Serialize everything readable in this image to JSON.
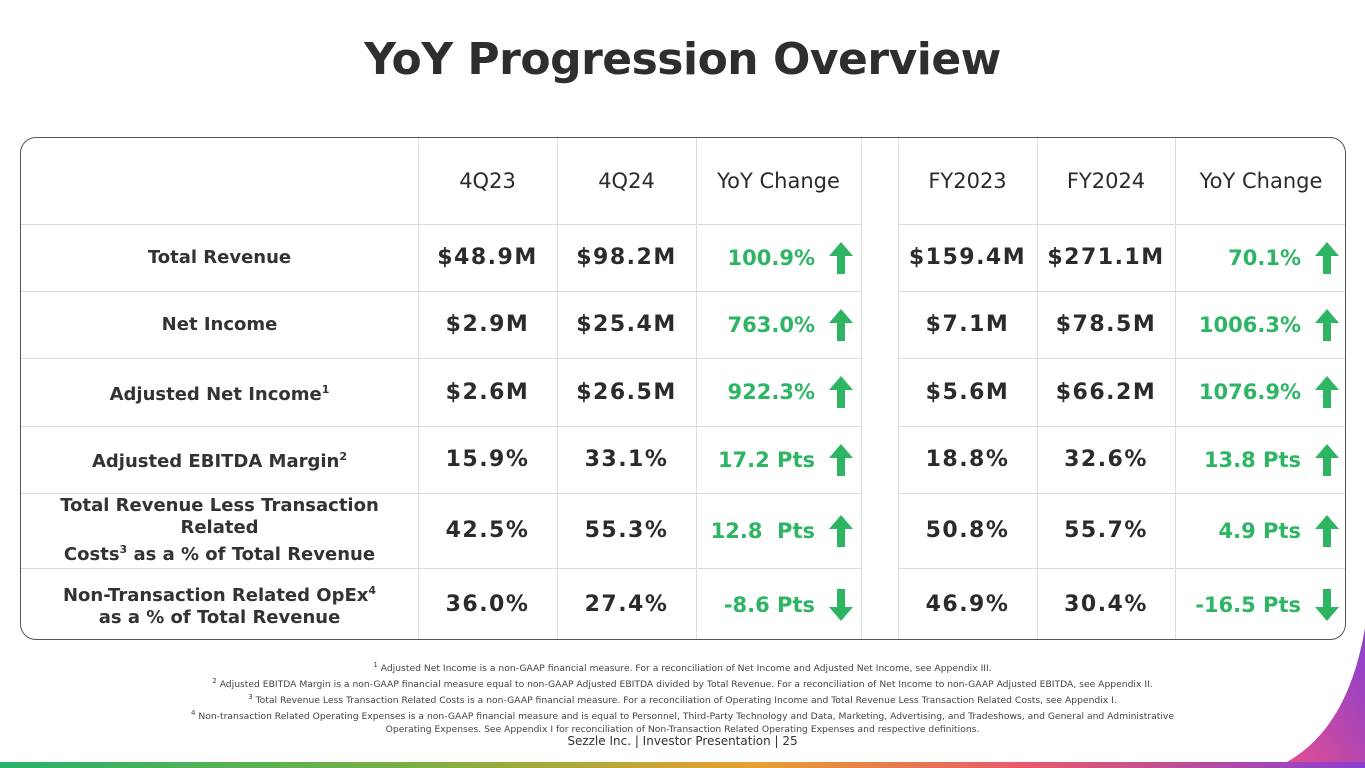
{
  "title": "YoY Progression Overview",
  "headers": [
    "4Q23",
    "4Q24",
    "YoY Change",
    "FY2023",
    "FY2024",
    "YoY Change"
  ],
  "rows": [
    {
      "label": "Total Revenue",
      "sup": "",
      "label2": "",
      "sup2": "",
      "q23": "$48.9M",
      "q24": "$98.2M",
      "qchg": "100.9%",
      "qdir": "up",
      "fy23": "$159.4M",
      "fy24": "$271.1M",
      "fychg": "70.1%",
      "fydir": "up"
    },
    {
      "label": "Net Income",
      "sup": "",
      "label2": "",
      "sup2": "",
      "q23": "$2.9M",
      "q24": "$25.4M",
      "qchg": "763.0%",
      "qdir": "up",
      "fy23": "$7.1M",
      "fy24": "$78.5M",
      "fychg": "1006.3%",
      "fydir": "up"
    },
    {
      "label": "Adjusted Net Income",
      "sup": "1",
      "label2": "",
      "sup2": "",
      "q23": "$2.6M",
      "q24": "$26.5M",
      "qchg": "922.3%",
      "qdir": "up",
      "fy23": "$5.6M",
      "fy24": "$66.2M",
      "fychg": "1076.9%",
      "fydir": "up"
    },
    {
      "label": "Adjusted EBITDA Margin",
      "sup": "2",
      "label2": "",
      "sup2": "",
      "q23": "15.9%",
      "q24": "33.1%",
      "qchg": "17.2 Pts",
      "qdir": "up",
      "fy23": "18.8%",
      "fy24": "32.6%",
      "fychg": "13.8 Pts",
      "fydir": "up"
    },
    {
      "label": "Total Revenue Less Transaction Related",
      "sup": "",
      "label2": "Costs",
      "sup2": "3",
      "label2b": " as a % of Total Revenue",
      "q23": "42.5%",
      "q24": "55.3%",
      "qchg": "12.8  Pts",
      "qdir": "up",
      "fy23": "50.8%",
      "fy24": "55.7%",
      "fychg": "4.9 Pts",
      "fydir": "up"
    },
    {
      "label": "Non-Transaction Related OpEx",
      "sup": "4",
      "label2": "as a % of Total Revenue",
      "sup2": "",
      "q23": "36.0%",
      "q24": "27.4%",
      "qchg": "-8.6 Pts",
      "qdir": "down",
      "fy23": "46.9%",
      "fy24": "30.4%",
      "fychg": "-16.5 Pts",
      "fydir": "down"
    }
  ],
  "footnotes": [
    {
      "num": "1",
      "text": "Adjusted Net Income is a non-GAAP financial measure. For a reconciliation of Net Income and Adjusted Net Income, see Appendix III."
    },
    {
      "num": "2",
      "text": "Adjusted EBITDA Margin is a non-GAAP financial measure equal to non-GAAP Adjusted EBITDA divided by Total Revenue. For a reconciliation of Net Income to non-GAAP Adjusted EBITDA, see Appendix II."
    },
    {
      "num": "3",
      "text": "Total Revenue Less Transaction Related Costs is a non-GAAP financial measure. For a reconciliation of Operating Income and Total Revenue Less Transaction Related Costs, see Appendix I."
    },
    {
      "num": "4",
      "text": "Non-transaction Related Operating Expenses is a non-GAAP financial measure and is equal to Personnel, Third-Party Technology and Data, Marketing, Advertising, and Tradeshows, and General and Administrative"
    },
    {
      "num": "",
      "text": "Operating Expenses. See Appendix I for reconciliation of Non-Transaction Related Operating Expenses and respective definitions."
    }
  ],
  "footer": "Sezzle Inc. | Investor Presentation | 25",
  "colors": {
    "up_green": "#2db564",
    "accent_purple": "#8a3fd0"
  }
}
